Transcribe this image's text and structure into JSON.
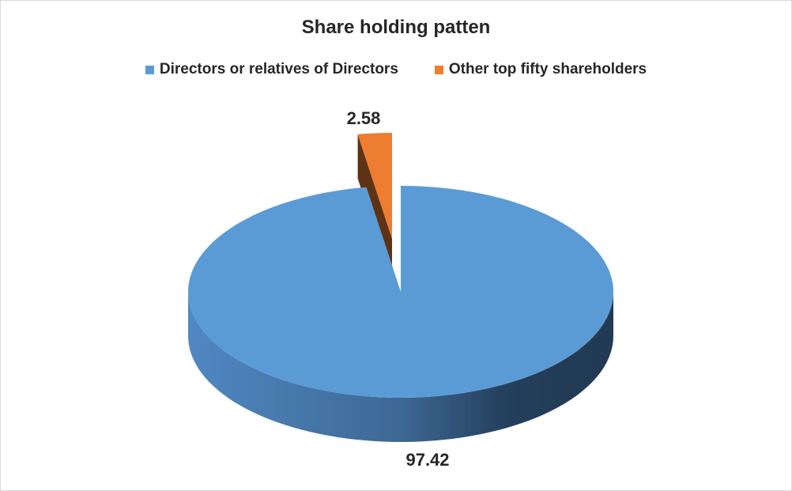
{
  "chart_data": {
    "type": "pie",
    "style": "3d-exploded",
    "title": "Share holding patten",
    "legend_position": "top",
    "slices": [
      {
        "name": "Directors or relatives of Directors",
        "value": 97.42,
        "label": "97.42",
        "color": "#5b9bd5"
      },
      {
        "name": "Other top fifty shareholders",
        "value": 2.58,
        "label": "2.58",
        "color": "#ed7d31"
      }
    ]
  }
}
